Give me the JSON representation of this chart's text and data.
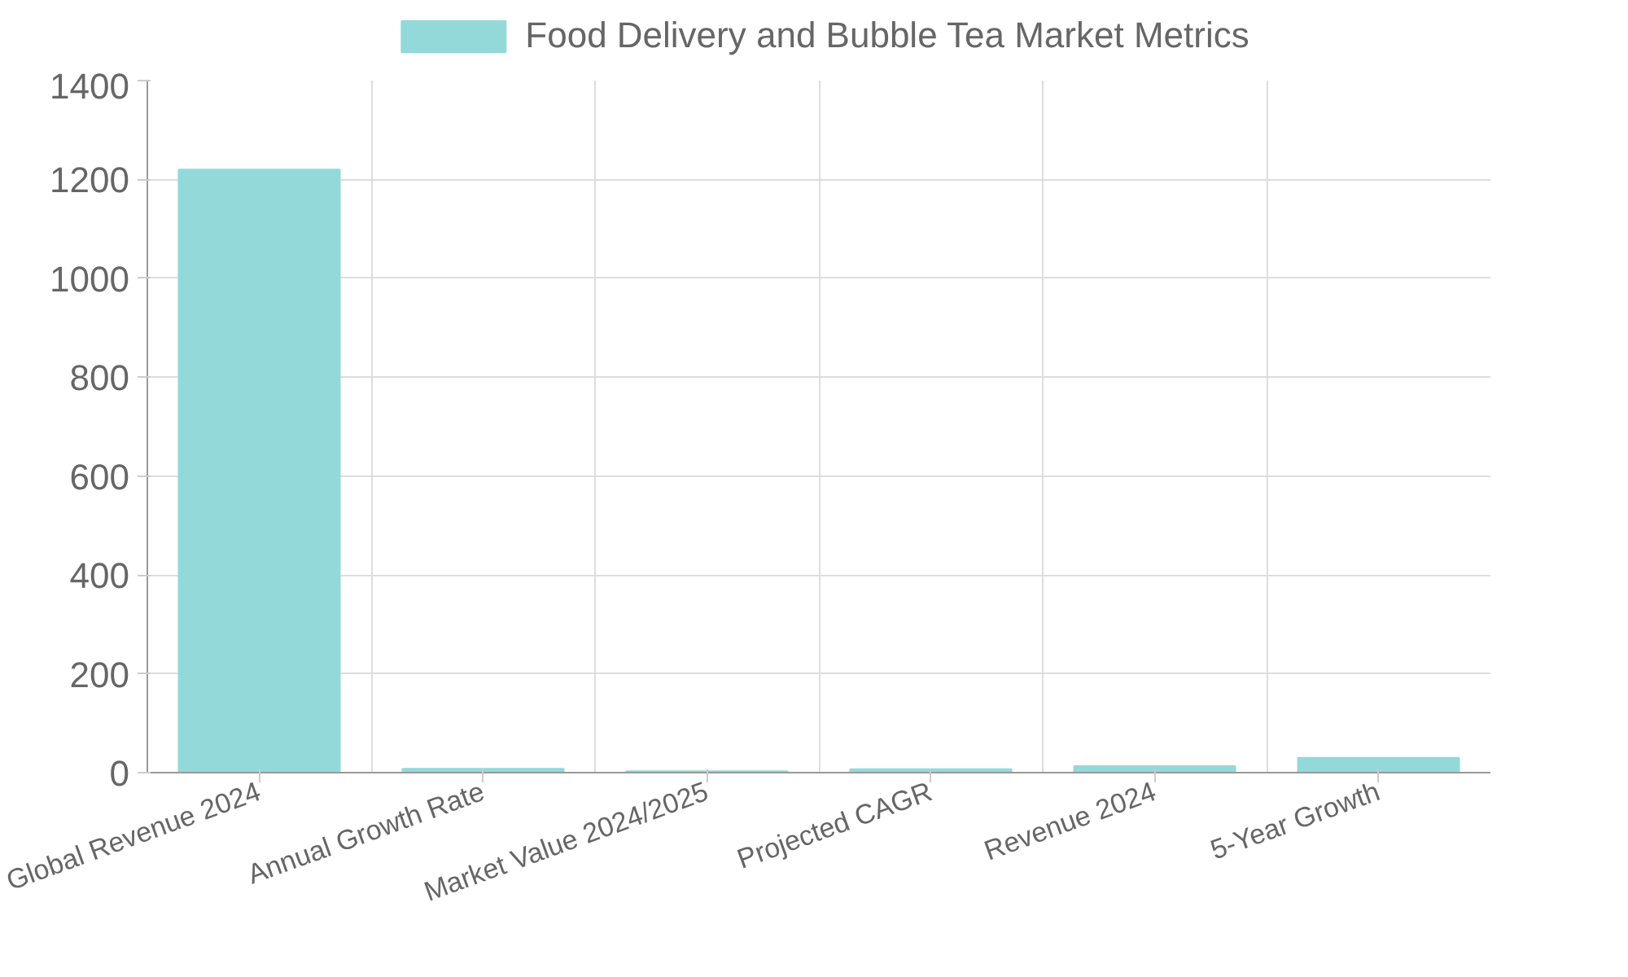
{
  "chart_data": {
    "type": "bar",
    "categories": [
      "Global Revenue 2024",
      "Annual Growth Rate",
      "Market Value 2024/2025",
      "Projected CAGR",
      "Revenue 2024",
      "5-Year Growth"
    ],
    "series": [
      {
        "name": "Food Delivery and Bubble Tea Market Metrics",
        "color": "#93d9d9",
        "values": [
          1220,
          8,
          3,
          7,
          13,
          30
        ]
      }
    ],
    "ylim": [
      0,
      1400
    ],
    "yticks": [
      0,
      200,
      400,
      600,
      800,
      1000,
      1200,
      1400
    ],
    "grid": true,
    "legend": "top"
  }
}
